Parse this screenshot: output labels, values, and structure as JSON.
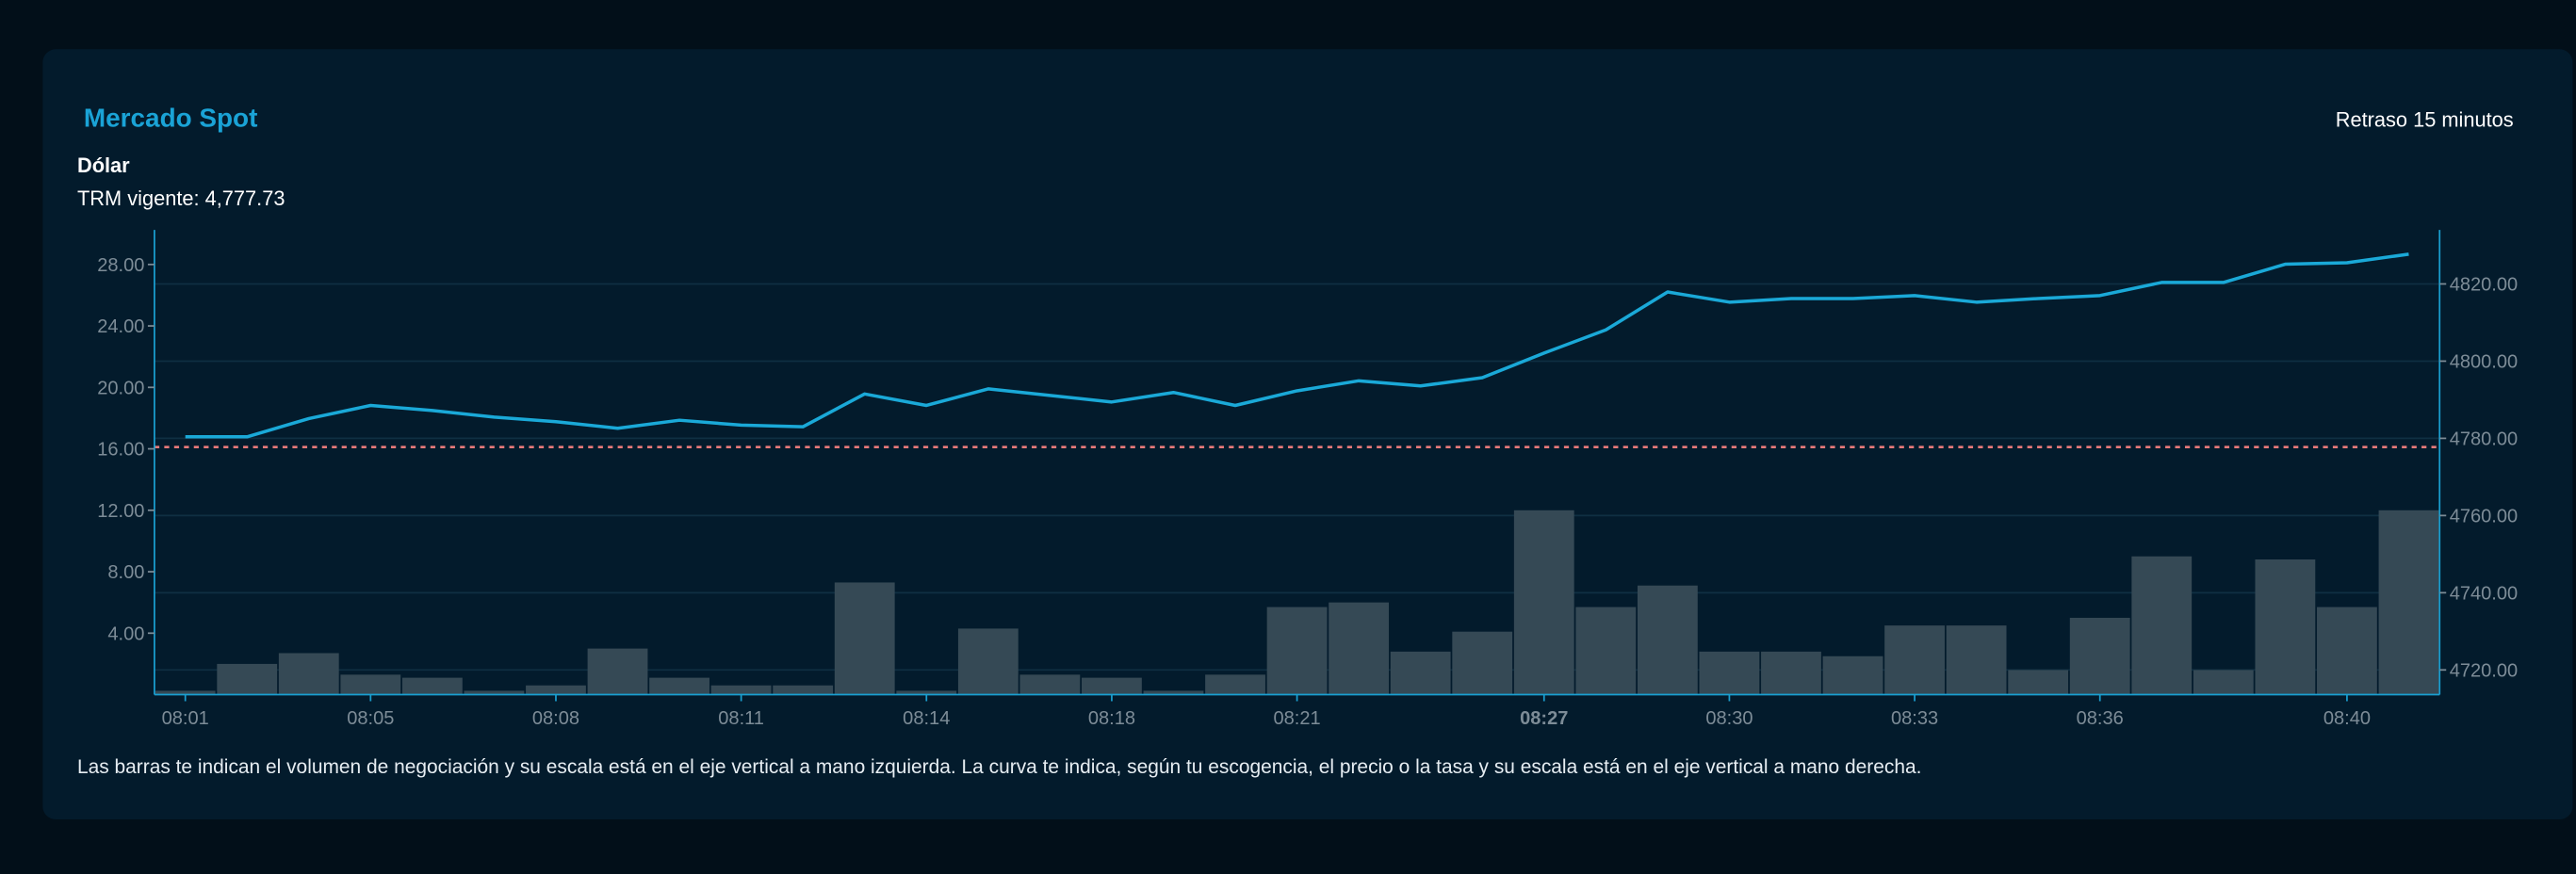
{
  "header": {
    "title": "Mercado Spot",
    "delay_label": "Retraso 15 minutos",
    "asset": "Dólar",
    "trm_label": "TRM vigente: 4,777.73"
  },
  "footer_note": "Las barras te indican el volumen de negociación y su escala está en el eje vertical a mano izquierda. La curva te indica, según tu escogencia, el precio o la tasa y su escala está en el eje vertical a mano derecha.",
  "chart_data": {
    "type": "bar+line",
    "x_ticks": [
      {
        "index": 0,
        "label": "08:01"
      },
      {
        "index": 3,
        "label": "08:05"
      },
      {
        "index": 6,
        "label": "08:08"
      },
      {
        "index": 9,
        "label": "08:11"
      },
      {
        "index": 12,
        "label": "08:14"
      },
      {
        "index": 15,
        "label": "08:18"
      },
      {
        "index": 18,
        "label": "08:21"
      },
      {
        "index": 22,
        "label": "08:27",
        "bold": true
      },
      {
        "index": 25,
        "label": "08:30"
      },
      {
        "index": 28,
        "label": "08:33"
      },
      {
        "index": 31,
        "label": "08:36"
      },
      {
        "index": 35,
        "label": "08:40"
      }
    ],
    "volume_bars": {
      "axis": "left",
      "values": [
        0.25,
        2.0,
        2.7,
        1.3,
        1.1,
        0.25,
        0.6,
        3.0,
        1.1,
        0.6,
        0.6,
        7.3,
        0.25,
        4.3,
        1.3,
        1.1,
        0.25,
        1.3,
        5.7,
        6.0,
        2.8,
        4.1,
        12.0,
        5.7,
        7.1,
        2.8,
        2.8,
        2.5,
        4.5,
        4.5,
        1.6,
        5.0,
        9.0,
        1.6,
        8.8,
        5.7,
        12.0
      ],
      "color": "#354955"
    },
    "price_line": {
      "axis": "right",
      "values": [
        4780.4,
        4780.4,
        4785.1,
        4788.5,
        4787.2,
        4785.5,
        4784.3,
        4782.6,
        4784.7,
        4783.4,
        4783.0,
        4791.5,
        4788.5,
        4792.8,
        4791.1,
        4789.4,
        4791.9,
        4788.5,
        4792.3,
        4794.9,
        4793.6,
        4795.7,
        4802.1,
        4808.1,
        4817.9,
        4815.3,
        4816.2,
        4816.2,
        4817.0,
        4815.3,
        4816.2,
        4817.0,
        4820.4,
        4820.4,
        4825.1,
        4825.5,
        4827.7
      ],
      "color": "#1aa9d8"
    },
    "reference_line": {
      "axis": "right",
      "value": 4777.73,
      "style": "dotted",
      "color": "#e87a7a"
    },
    "left_axis": {
      "ticks": [
        "4.00",
        "8.00",
        "12.00",
        "16.00",
        "20.00",
        "24.00",
        "28.00"
      ],
      "tick_values": [
        4,
        8,
        12,
        16,
        20,
        24,
        28
      ],
      "range": [
        0,
        30.25
      ]
    },
    "right_axis": {
      "ticks": [
        "4720.00",
        "4740.00",
        "4760.00",
        "4780.00",
        "4800.00",
        "4820.00"
      ],
      "tick_values": [
        4720,
        4740,
        4760,
        4780,
        4800,
        4820
      ],
      "range": [
        4713.6,
        4834
      ]
    },
    "grid": "horizontal",
    "colors": {
      "axis": "#1a9fd0",
      "grid": "#0f2f42",
      "card": "#031b2c",
      "background": "#020f19"
    }
  }
}
